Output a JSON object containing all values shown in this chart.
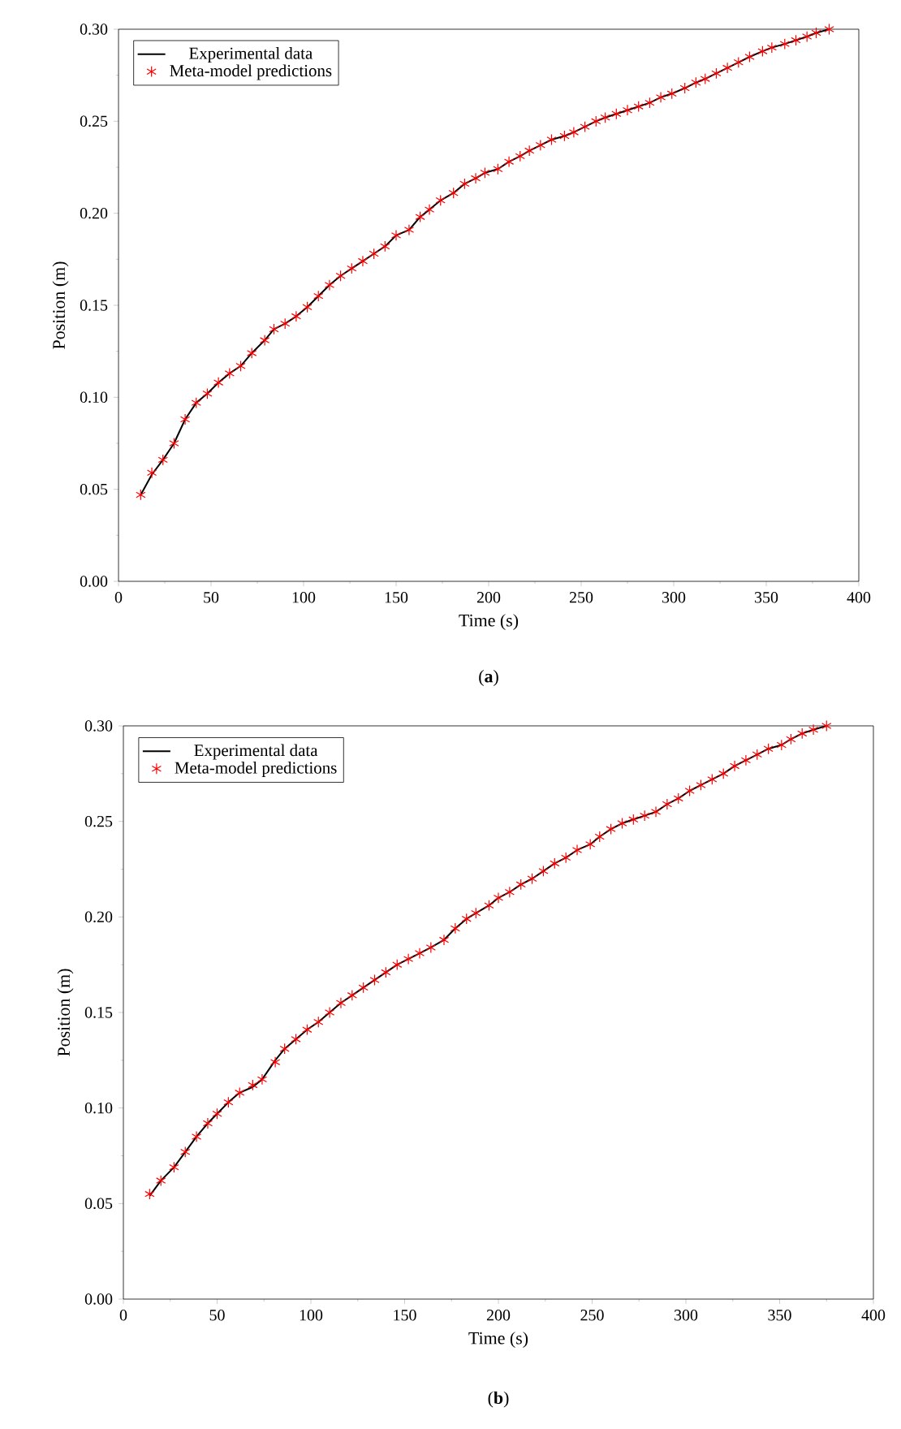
{
  "chart_data": [
    {
      "type": "line",
      "xlabel": "Time (s)",
      "ylabel": "Position (m)",
      "annotations": [
        "(**a**)"
      ],
      "legend": "top left",
      "x": [
        12,
        18,
        24,
        30,
        36,
        42,
        48,
        54,
        60,
        66,
        72,
        79,
        84,
        90,
        96,
        102,
        108,
        114,
        120,
        126,
        132,
        138,
        144,
        150,
        157,
        163,
        168,
        174,
        181,
        187,
        193,
        198,
        205,
        211,
        217,
        222,
        228,
        234,
        241,
        246,
        252,
        258,
        263,
        269,
        275,
        281,
        287,
        293,
        299,
        306,
        312,
        317,
        323,
        329,
        335,
        341,
        348,
        353,
        360,
        366,
        372,
        377,
        384
      ],
      "series": [
        {
          "name": "Experimental data",
          "color": "#000000",
          "marker": "none",
          "line_style": "solid",
          "values": [
            0.047,
            0.058,
            0.066,
            0.075,
            0.088,
            0.097,
            0.102,
            0.108,
            0.113,
            0.117,
            0.124,
            0.131,
            0.137,
            0.14,
            0.144,
            0.149,
            0.155,
            0.161,
            0.166,
            0.17,
            0.174,
            0.178,
            0.182,
            0.188,
            0.191,
            0.198,
            0.202,
            0.207,
            0.211,
            0.216,
            0.219,
            0.222,
            0.224,
            0.228,
            0.231,
            0.234,
            0.237,
            0.24,
            0.242,
            0.244,
            0.247,
            0.25,
            0.252,
            0.254,
            0.256,
            0.258,
            0.26,
            0.263,
            0.265,
            0.268,
            0.271,
            0.273,
            0.276,
            0.279,
            0.282,
            0.285,
            0.288,
            0.29,
            0.292,
            0.294,
            0.296,
            0.298,
            0.3
          ]
        },
        {
          "name": "Meta-model predictions",
          "type": "scatter",
          "color": "#ff0000",
          "marker": "cross",
          "values": [
            0.047,
            0.059,
            0.066,
            0.075,
            0.088,
            0.097,
            0.102,
            0.108,
            0.113,
            0.117,
            0.124,
            0.131,
            0.137,
            0.14,
            0.144,
            0.149,
            0.155,
            0.161,
            0.166,
            0.17,
            0.174,
            0.178,
            0.182,
            0.188,
            0.191,
            0.198,
            0.202,
            0.207,
            0.211,
            0.216,
            0.219,
            0.222,
            0.224,
            0.228,
            0.231,
            0.234,
            0.237,
            0.24,
            0.242,
            0.244,
            0.247,
            0.25,
            0.252,
            0.254,
            0.256,
            0.258,
            0.26,
            0.263,
            0.265,
            0.268,
            0.271,
            0.273,
            0.276,
            0.279,
            0.282,
            0.285,
            0.288,
            0.29,
            0.292,
            0.294,
            0.296,
            0.298,
            0.3
          ]
        }
      ],
      "xlim": [
        0,
        400
      ],
      "xticks": [
        0,
        50,
        100,
        150,
        200,
        250,
        300,
        350,
        400
      ],
      "ylim": [
        0,
        0.3
      ],
      "yticks": [
        {
          "value": 0,
          "label": "0.00"
        },
        {
          "value": 0.05,
          "label": "0.05"
        },
        {
          "value": 0.1,
          "label": "0.10"
        },
        {
          "value": 0.15,
          "label": "0.15"
        },
        {
          "value": 0.2,
          "label": "0.20"
        },
        {
          "value": 0.25,
          "label": "0.25"
        },
        {
          "value": 0.3,
          "label": "0.30"
        }
      ]
    },
    {
      "type": "line",
      "xlabel": "Time (s)",
      "ylabel": "Position (m)",
      "annotations": [
        "(**b**)"
      ],
      "legend": "top left",
      "x": [
        14,
        20,
        27,
        33,
        39,
        45,
        50,
        56,
        62,
        69,
        74,
        81,
        86,
        92,
        98,
        104,
        110,
        116,
        122,
        128,
        134,
        140,
        146,
        152,
        158,
        164,
        171,
        177,
        183,
        188,
        195,
        200,
        206,
        212,
        218,
        224,
        230,
        236,
        242,
        249,
        254,
        260,
        266,
        272,
        278,
        284,
        290,
        296,
        302,
        308,
        314,
        320,
        326,
        332,
        338,
        344,
        351,
        356,
        362,
        368,
        375
      ],
      "series": [
        {
          "name": "Experimental data",
          "color": "#000000",
          "marker": "none",
          "line_style": "solid",
          "values": [
            0.054,
            0.062,
            0.069,
            0.077,
            0.085,
            0.092,
            0.097,
            0.103,
            0.108,
            0.111,
            0.115,
            0.125,
            0.131,
            0.136,
            0.141,
            0.145,
            0.15,
            0.155,
            0.159,
            0.163,
            0.167,
            0.171,
            0.175,
            0.178,
            0.181,
            0.184,
            0.188,
            0.194,
            0.199,
            0.202,
            0.206,
            0.21,
            0.213,
            0.217,
            0.22,
            0.224,
            0.228,
            0.231,
            0.235,
            0.238,
            0.242,
            0.246,
            0.249,
            0.251,
            0.253,
            0.255,
            0.259,
            0.262,
            0.266,
            0.269,
            0.272,
            0.275,
            0.279,
            0.282,
            0.285,
            0.288,
            0.29,
            0.293,
            0.296,
            0.298,
            0.3
          ]
        },
        {
          "name": "Meta-model predictions",
          "type": "scatter",
          "color": "#ff0000",
          "marker": "cross",
          "values": [
            0.055,
            0.062,
            0.069,
            0.077,
            0.085,
            0.092,
            0.097,
            0.103,
            0.108,
            0.112,
            0.115,
            0.124,
            0.131,
            0.136,
            0.141,
            0.145,
            0.15,
            0.155,
            0.159,
            0.163,
            0.167,
            0.171,
            0.175,
            0.178,
            0.181,
            0.184,
            0.188,
            0.194,
            0.199,
            0.202,
            0.206,
            0.21,
            0.213,
            0.217,
            0.22,
            0.224,
            0.228,
            0.231,
            0.235,
            0.238,
            0.242,
            0.246,
            0.249,
            0.251,
            0.253,
            0.255,
            0.259,
            0.262,
            0.266,
            0.269,
            0.272,
            0.275,
            0.279,
            0.282,
            0.285,
            0.288,
            0.29,
            0.293,
            0.296,
            0.298,
            0.3
          ]
        }
      ],
      "xlim": [
        0,
        400
      ],
      "xticks": [
        0,
        50,
        100,
        150,
        200,
        250,
        300,
        350,
        400
      ],
      "ylim": [
        0,
        0.3
      ],
      "yticks": [
        {
          "value": 0,
          "label": "0.00"
        },
        {
          "value": 0.05,
          "label": "0.05"
        },
        {
          "value": 0.1,
          "label": "0.10"
        },
        {
          "value": 0.15,
          "label": "0.15"
        },
        {
          "value": 0.2,
          "label": "0.20"
        },
        {
          "value": 0.25,
          "label": "0.25"
        },
        {
          "value": 0.3,
          "label": "0.30"
        }
      ]
    }
  ]
}
